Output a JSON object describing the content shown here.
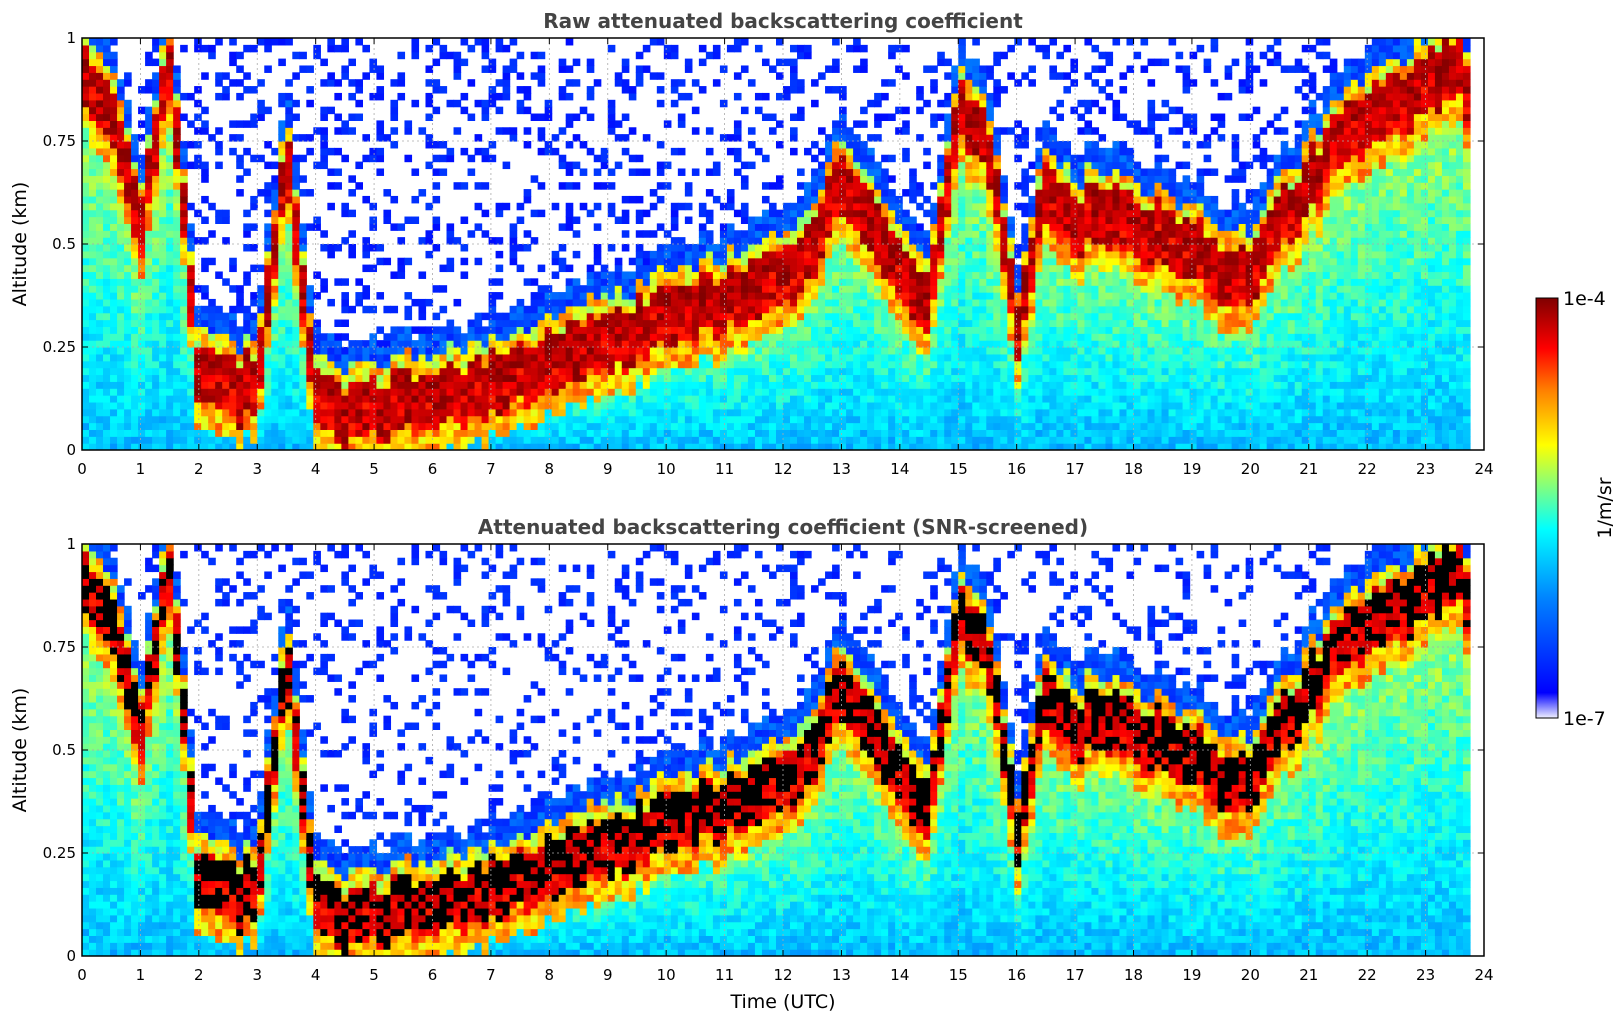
{
  "chart_data": [
    {
      "type": "heatmap",
      "title": "Raw attenuated backscattering coefficient",
      "xlabel": "",
      "ylabel": "Altitude (km)",
      "xlim": [
        0,
        24
      ],
      "ylim": [
        0,
        1
      ],
      "x_ticks": [
        "0",
        "1",
        "2",
        "3",
        "4",
        "5",
        "6",
        "7",
        "8",
        "9",
        "10",
        "11",
        "12",
        "13",
        "14",
        "15",
        "16",
        "17",
        "18",
        "19",
        "20",
        "21",
        "22",
        "23",
        "24"
      ],
      "y_ticks": [
        "0",
        "0.25",
        "0.5",
        "0.75",
        "1"
      ],
      "grid": true,
      "layer_profile": {
        "time_utc": [
          0,
          0.5,
          1,
          1.5,
          2,
          2.5,
          3,
          3.5,
          4,
          4.5,
          5,
          5.5,
          6,
          6.5,
          7,
          7.5,
          8,
          8.5,
          9,
          9.5,
          10,
          10.5,
          11,
          11.5,
          12,
          12.5,
          13,
          13.5,
          14,
          14.5,
          15,
          15.5,
          16,
          16.5,
          17,
          17.5,
          18,
          18.5,
          19,
          19.5,
          20,
          20.5,
          21,
          21.5,
          22,
          22.5,
          23,
          23.5,
          23.8
        ],
        "layer_altitude_km": [
          0.9,
          0.85,
          0.55,
          0.95,
          0.18,
          0.15,
          0.17,
          0.72,
          0.14,
          0.1,
          0.1,
          0.12,
          0.14,
          0.15,
          0.17,
          0.2,
          0.22,
          0.26,
          0.28,
          0.3,
          0.33,
          0.35,
          0.38,
          0.4,
          0.42,
          0.5,
          0.65,
          0.55,
          0.45,
          0.35,
          0.85,
          0.75,
          0.3,
          0.65,
          0.55,
          0.6,
          0.55,
          0.52,
          0.5,
          0.45,
          0.42,
          0.55,
          0.65,
          0.75,
          0.8,
          0.85,
          0.9,
          0.95,
          0.85
        ]
      }
    },
    {
      "type": "heatmap",
      "title": "Attenuated backscattering coefficient (SNR-screened)",
      "xlabel": "Time (UTC)",
      "ylabel": "Altitude (km)",
      "xlim": [
        0,
        24
      ],
      "ylim": [
        0,
        1
      ],
      "x_ticks": [
        "0",
        "1",
        "2",
        "3",
        "4",
        "5",
        "6",
        "7",
        "8",
        "9",
        "10",
        "11",
        "12",
        "13",
        "14",
        "15",
        "16",
        "17",
        "18",
        "19",
        "20",
        "21",
        "22",
        "23",
        "24"
      ],
      "y_ticks": [
        "0",
        "0.25",
        "0.5",
        "0.75",
        "1"
      ],
      "grid": true
    }
  ],
  "colorbar": {
    "label": "1/m/sr",
    "max_label": "1e-4",
    "min_label": "1e-7",
    "colormap": [
      "#f0f0ff",
      "#0000ff",
      "#0080ff",
      "#00ffff",
      "#80ff80",
      "#ffff00",
      "#ff8000",
      "#ff0000",
      "#800000"
    ]
  }
}
